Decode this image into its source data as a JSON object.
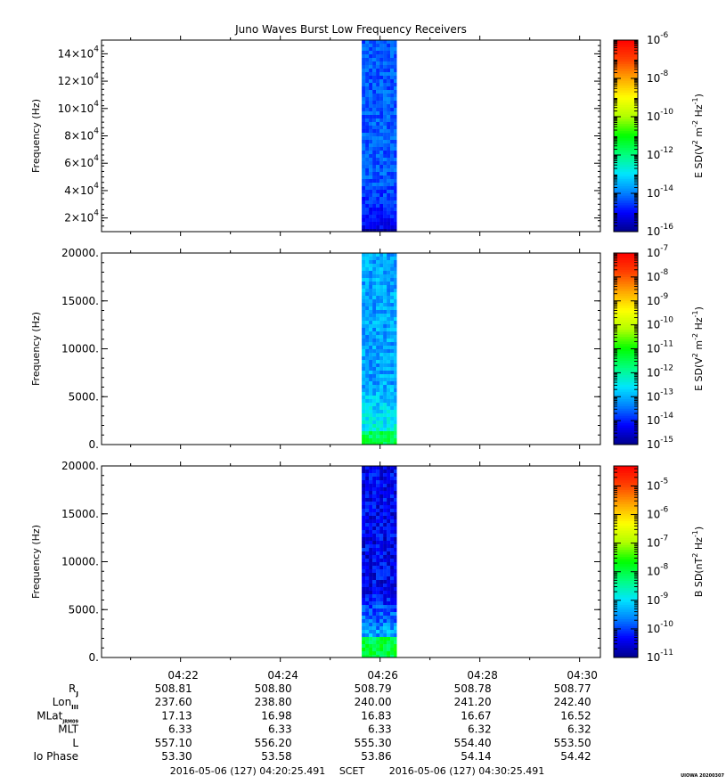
{
  "title": "Juno Waves Burst Low Frequency Receivers",
  "footer": {
    "start_time": "2016-05-06 (127) 04:20:25.491",
    "axis_name": "SCET",
    "end_time": "2016-05-06 (127) 04:30:25.491",
    "credit": "UIOWA 20200307"
  },
  "colors": {
    "spectrum": [
      "#00008b",
      "#0000ff",
      "#0080ff",
      "#00e5ff",
      "#00ff80",
      "#00ff00",
      "#b0ff00",
      "#ffff00",
      "#ffa500",
      "#ff4000",
      "#ff0000"
    ]
  },
  "chart_data": [
    {
      "type": "heatmap",
      "name": "panel-1",
      "ylabel": "Frequency (Hz)",
      "ylim": [
        10000,
        150000
      ],
      "yticks": [
        {
          "value": 20000,
          "mant": "2×10",
          "exp": "4"
        },
        {
          "value": 40000,
          "mant": "4×10",
          "exp": "4"
        },
        {
          "value": 60000,
          "mant": "6×10",
          "exp": "4"
        },
        {
          "value": 80000,
          "mant": "8×10",
          "exp": "4"
        },
        {
          "value": 100000,
          "mant": "10×10",
          "exp": "4"
        },
        {
          "value": 120000,
          "mant": "12×10",
          "exp": "4"
        },
        {
          "value": 140000,
          "mant": "14×10",
          "exp": "4"
        }
      ],
      "data_interval": [
        "04:25:38",
        "04:26:20"
      ],
      "colorbar": {
        "label_main": "E SD(V",
        "label_mid": " m",
        "label_sup1": "2",
        "label_sup2": "-2",
        "label_hz": " Hz",
        "label_sup3": "-1",
        "label_end": ")",
        "log_range": [
          -16,
          -6
        ],
        "ticks": [
          {
            "value": -6,
            "base": "10",
            "exp": "-6"
          },
          {
            "value": -8,
            "base": "10",
            "exp": "-8"
          },
          {
            "value": -10,
            "base": "10",
            "exp": "-10"
          },
          {
            "value": -12,
            "base": "10",
            "exp": "-12"
          },
          {
            "value": -14,
            "base": "10",
            "exp": "-14"
          },
          {
            "value": -16,
            "base": "10",
            "exp": "-16"
          }
        ]
      },
      "intensity_profile": {
        "low_band": [
          10000,
          12000
        ],
        "low_value": -16,
        "body_value": -14.3
      }
    },
    {
      "type": "heatmap",
      "name": "panel-2",
      "ylabel": "Frequency (Hz)",
      "ylim": [
        0,
        20000
      ],
      "yticks": [
        {
          "value": 0,
          "label": "0."
        },
        {
          "value": 5000,
          "label": "5000."
        },
        {
          "value": 10000,
          "label": "10000."
        },
        {
          "value": 15000,
          "label": "15000."
        },
        {
          "value": 20000,
          "label": "20000."
        }
      ],
      "data_interval": [
        "04:25:38",
        "04:26:20"
      ],
      "colorbar": {
        "label_main": "E SD(V",
        "label_mid": " m",
        "label_sup1": "2",
        "label_sup2": "-2",
        "label_hz": " Hz",
        "label_sup3": "-1",
        "label_end": ")",
        "log_range": [
          -15,
          -7
        ],
        "ticks": [
          {
            "value": -7,
            "base": "10",
            "exp": "-7"
          },
          {
            "value": -8,
            "base": "10",
            "exp": "-8"
          },
          {
            "value": -9,
            "base": "10",
            "exp": "-9"
          },
          {
            "value": -10,
            "base": "10",
            "exp": "-10"
          },
          {
            "value": -11,
            "base": "10",
            "exp": "-11"
          },
          {
            "value": -12,
            "base": "10",
            "exp": "-12"
          },
          {
            "value": -13,
            "base": "10",
            "exp": "-13"
          },
          {
            "value": -14,
            "base": "10",
            "exp": "-14"
          },
          {
            "value": -15,
            "base": "10",
            "exp": "-15"
          }
        ]
      },
      "intensity_profile": {
        "low_band": [
          0,
          1500
        ],
        "low_value": -11.5,
        "body_value": -13.1
      }
    },
    {
      "type": "heatmap",
      "name": "panel-3",
      "ylabel": "Frequency (Hz)",
      "ylim": [
        0,
        20000
      ],
      "yticks": [
        {
          "value": 0,
          "label": "0."
        },
        {
          "value": 5000,
          "label": "5000."
        },
        {
          "value": 10000,
          "label": "10000."
        },
        {
          "value": 15000,
          "label": "15000."
        },
        {
          "value": 20000,
          "label": "20000."
        }
      ],
      "data_interval": [
        "04:25:38",
        "04:26:20"
      ],
      "colorbar": {
        "label_main": "B SD(nT",
        "label_mid": "",
        "label_sup1": "2",
        "label_sup2": "",
        "label_hz": " Hz",
        "label_sup3": "-1",
        "label_end": ")",
        "log_range": [
          -11,
          -4.3
        ],
        "ticks": [
          {
            "value": -5,
            "base": "10",
            "exp": "-5"
          },
          {
            "value": -6,
            "base": "10",
            "exp": "-6"
          },
          {
            "value": -7,
            "base": "10",
            "exp": "-7"
          },
          {
            "value": -8,
            "base": "10",
            "exp": "-8"
          },
          {
            "value": -9,
            "base": "10",
            "exp": "-9"
          },
          {
            "value": -10,
            "base": "10",
            "exp": "-10"
          },
          {
            "value": -11,
            "base": "10",
            "exp": "-11"
          }
        ]
      },
      "intensity_profile": {
        "low_band": [
          0,
          2000
        ],
        "low_value": -8.0,
        "body_value": -10.4
      }
    }
  ],
  "time_axis": {
    "range": [
      "04:20:25",
      "04:30:25"
    ],
    "ticks": [
      {
        "time": "04:22:00",
        "label": "04:22"
      },
      {
        "time": "04:24:00",
        "label": "04:24"
      },
      {
        "time": "04:26:00",
        "label": "04:26"
      },
      {
        "time": "04:28:00",
        "label": "04:28"
      },
      {
        "time": "04:30:00",
        "label": "04:30"
      }
    ],
    "minor_ticks": [
      "04:21:00",
      "04:23:00",
      "04:25:00",
      "04:27:00",
      "04:29:00"
    ]
  },
  "ephemeris": [
    {
      "label": "R",
      "sub": "J",
      "values": [
        "508.81",
        "508.80",
        "508.79",
        "508.78",
        "508.77"
      ]
    },
    {
      "label": "Lon",
      "sub": "III",
      "values": [
        "237.60",
        "238.80",
        "240.00",
        "241.20",
        "242.40"
      ]
    },
    {
      "label": "MLat",
      "sub": "JRM09",
      "values": [
        "17.13",
        "16.98",
        "16.83",
        "16.67",
        "16.52"
      ]
    },
    {
      "label": "MLT",
      "sub": "",
      "values": [
        "6.33",
        "6.33",
        "6.33",
        "6.32",
        "6.32"
      ]
    },
    {
      "label": "L",
      "sub": "",
      "values": [
        "557.10",
        "556.20",
        "555.30",
        "554.40",
        "553.50"
      ]
    },
    {
      "label": "Io Phase",
      "sub": "",
      "values": [
        "53.30",
        "53.58",
        "53.86",
        "54.14",
        "54.42"
      ]
    }
  ]
}
